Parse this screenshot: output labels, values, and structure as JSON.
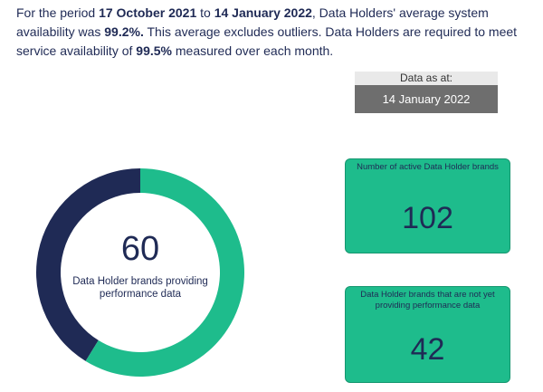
{
  "intro": {
    "text1": "For the period ",
    "start_date": "17 October 2021",
    "text2": " to ",
    "end_date": "14 January 2022",
    "text3": ", Data Holders' average system availability was ",
    "availability": "99.2%.",
    "text4": " This average excludes outliers. Data Holders are required to meet service availability of ",
    "required": "99.5%",
    "text5": " measured over each month."
  },
  "data_as_at": {
    "label": "Data as at:",
    "date": "14 January 2022"
  },
  "donut": {
    "number": "60",
    "caption": "Data Holder brands providing performance data",
    "providing_fraction": 0.588,
    "colors": {
      "providing": "#1ebc8c",
      "not_providing": "#1f2a55"
    }
  },
  "kpis": [
    {
      "title": "Number of active Data Holder brands",
      "value": "102"
    },
    {
      "title": "Data Holder brands that are not yet providing performance data",
      "value": "42"
    }
  ]
}
